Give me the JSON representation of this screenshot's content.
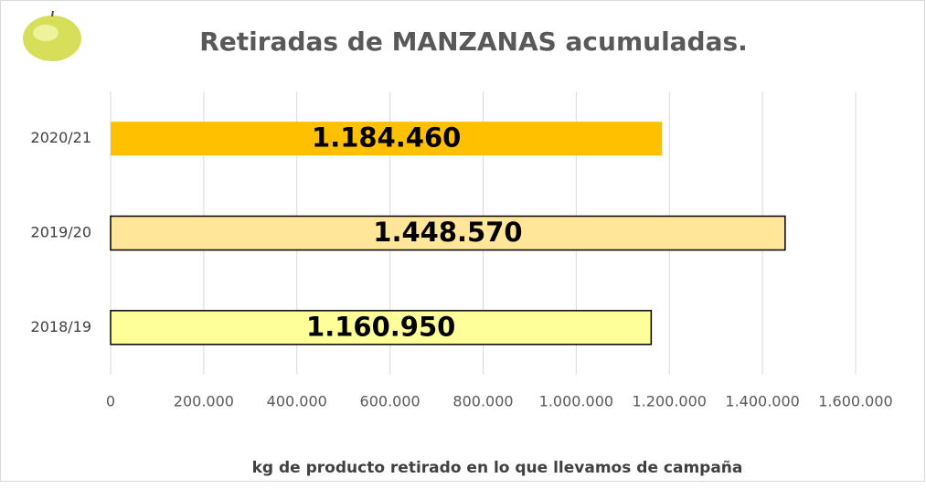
{
  "chart_data": {
    "type": "hbar",
    "title": "Retiradas de MANZANAS acumuladas.",
    "xlabel": "kg de producto retirado en lo que llevamos de campaña",
    "categories": [
      "2020/21",
      "2019/20",
      "2018/19"
    ],
    "values": [
      1184460,
      1448570,
      1160950
    ],
    "value_labels": [
      "1.184.460",
      "1.448.570",
      "1.160.950"
    ],
    "colors": [
      "#ffc000",
      "#ffe699",
      "#ffff99"
    ],
    "xlim": [
      0,
      1600000
    ],
    "xticks": [
      0,
      {
        "value": 200000,
        "label": "200.000"
      },
      {
        "value": 400000,
        "label": "400.000"
      },
      {
        "value": 600000,
        "label": "600.000"
      },
      {
        "value": 800000,
        "label": "800.000"
      },
      {
        "value": 1000000,
        "label": "1.000.000"
      },
      {
        "value": 1200000,
        "label": "1.200.000"
      },
      {
        "value": 1400000,
        "label": "1.400.000"
      },
      {
        "value": 1600000,
        "label": "1.600.000"
      }
    ],
    "grid": true
  }
}
